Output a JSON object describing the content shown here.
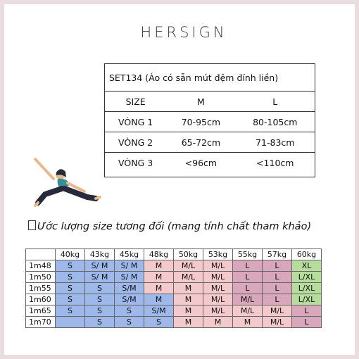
{
  "brand": "HERSIGN",
  "size_table": {
    "title": "SET134 (Áo có sẵn mút đệm đính liền)",
    "header": [
      "SIZE",
      "M",
      "L"
    ],
    "rows": [
      [
        "VÒNG 1",
        "70-95cm",
        "80-105cm"
      ],
      [
        "VÒNG 2",
        "65-72cm",
        "71-83cm"
      ],
      [
        "VÒNG 3",
        "<96cm",
        "<110cm"
      ]
    ]
  },
  "figure_icon": "yoga-woman-icon",
  "note": "Ước lượng size tương đối (mang tính chất tham khảo)",
  "estimate_table": {
    "weights": [
      "40kg",
      "43kg",
      "45kg",
      "48kg",
      "50kg",
      "53kg",
      "55kg",
      "57kg",
      "60kg"
    ],
    "rows": [
      {
        "height": "1m48",
        "cells": [
          "S",
          "S/ M",
          "S/ M",
          "M",
          "M/L",
          "M/L",
          "L",
          "L",
          "XL"
        ]
      },
      {
        "height": "1m50",
        "cells": [
          "S",
          "S/ M",
          "S/ M",
          "M",
          "M/L",
          "M/L",
          "L",
          "L",
          "L/XL"
        ]
      },
      {
        "height": "1m55",
        "cells": [
          "S",
          "S",
          "S/M",
          "M",
          "M",
          "M/L",
          "L",
          "L",
          "L/XL"
        ]
      },
      {
        "height": "1m60",
        "cells": [
          "S",
          "S",
          "S/M",
          "M",
          "M",
          "M/L",
          "M/L",
          "L",
          "L/XL"
        ]
      },
      {
        "height": "1m65",
        "cells": [
          "S",
          "S",
          "S",
          "S/M",
          "M",
          "M/L",
          "M/L",
          "M/L",
          "L"
        ]
      },
      {
        "height": "1m70",
        "cells": [
          "",
          "S",
          "S",
          "S",
          "M",
          "M",
          "M",
          "M/L",
          "L"
        ]
      }
    ],
    "colors": {
      "blue": "#9fb8ea",
      "pink": "#f3c9cc",
      "mauve": "#d9a7bb",
      "green": "#b7dd9e"
    }
  }
}
